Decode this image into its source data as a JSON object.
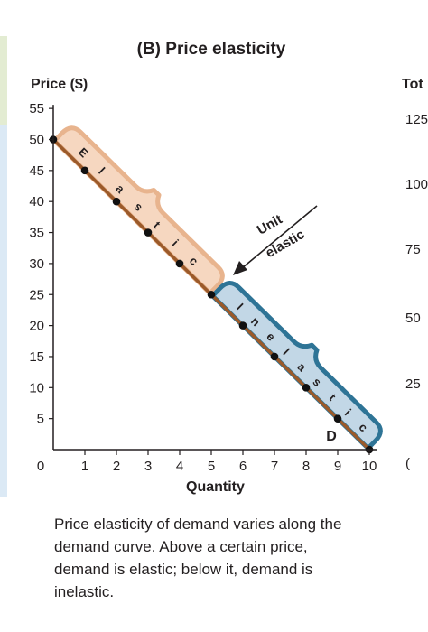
{
  "panel_title": "(B) Price elasticity",
  "caption": "Price elasticity of demand varies along the demand curve. Above a certain price, demand is elastic; below it, demand is inelastic.",
  "right_panel": {
    "title": "Tot",
    "ticks": [
      "125",
      "100",
      "75",
      "50",
      "25",
      "("
    ]
  },
  "colors": {
    "demand_line": "#9b5a2a",
    "elastic_fill": "#f6d7c0",
    "elastic_stroke": "#e8b48e",
    "inelastic_fill": "#c2d7e6",
    "inelastic_stroke": "#2e7496",
    "point": "#111111",
    "left_strip": [
      "#e3ecd2",
      "#dbe9f5"
    ]
  },
  "chart_data": {
    "type": "line",
    "title": "(B) Price elasticity",
    "xlabel": "Quantity",
    "ylabel": "Price ($)",
    "xlim": [
      0,
      10
    ],
    "ylim": [
      0,
      55
    ],
    "xticks": [
      "0",
      "1",
      "2",
      "3",
      "4",
      "5",
      "6",
      "7",
      "8",
      "9",
      "10"
    ],
    "yticks": [
      "5",
      "10",
      "15",
      "20",
      "25",
      "30",
      "35",
      "40",
      "45",
      "50",
      "55"
    ],
    "grid": false,
    "series": [
      {
        "name": "D",
        "x": [
          0,
          1,
          2,
          3,
          4,
          5,
          6,
          7,
          8,
          9,
          10
        ],
        "y": [
          50,
          45,
          40,
          35,
          30,
          25,
          20,
          15,
          10,
          5,
          0
        ]
      }
    ],
    "annotations": {
      "elastic_label": [
        "E",
        "l",
        "a",
        "s",
        "t",
        "i",
        "c"
      ],
      "inelastic_label": [
        "I",
        "n",
        "e",
        "l",
        "a",
        "s",
        "t",
        "i",
        "c"
      ],
      "unit_elastic": [
        "Unit",
        "elastic"
      ]
    }
  }
}
